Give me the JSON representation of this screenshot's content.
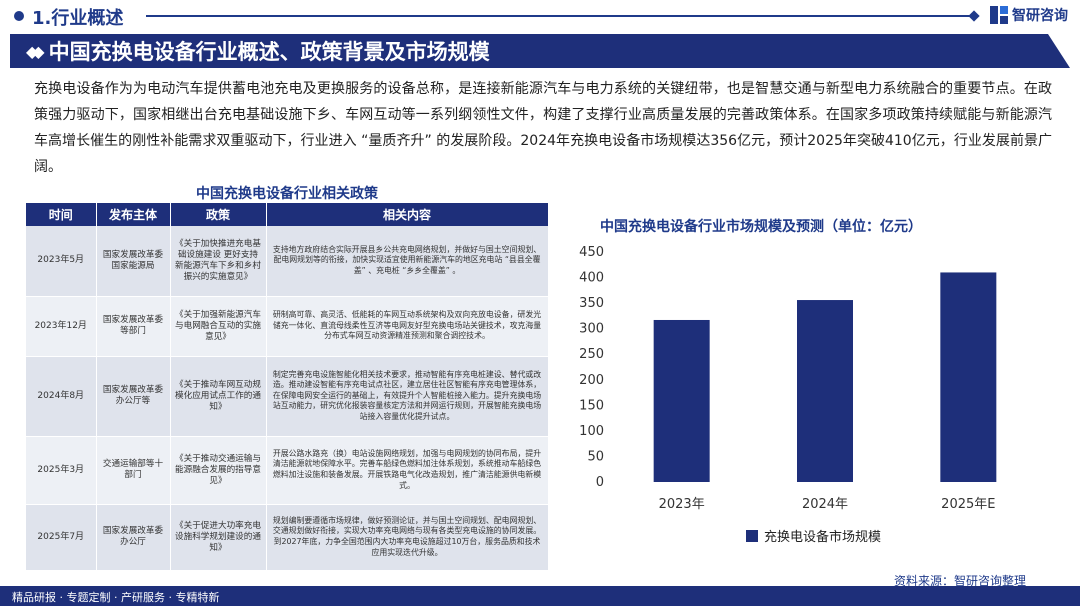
{
  "section": {
    "title": "1.行业概述",
    "logo_text": "智研咨询"
  },
  "banner": {
    "headline": "中国充换电设备行业概述、政策背景及市场规模"
  },
  "intro": "充换电设备作为为电动汽车提供蓄电池充电及更换服务的设备总称，是连接新能源汽车与电力系统的关键纽带，也是智慧交通与新型电力系统融合的重要节点。在政策强力驱动下，国家相继出台充电基础设施下乡、车网互动等一系列纲领性文件，构建了支撑行业高质量发展的完善政策体系。在国家多项政策持续赋能与新能源汽车高增长催生的刚性补能需求双重驱动下，行业进入 “量质齐升” 的发展阶段。2024年充换电设备市场规模达356亿元，预计2025年突破410亿元，行业发展前景广阔。",
  "policy_table": {
    "title": "中国充换电设备行业相关政策",
    "headers": [
      "时间",
      "发布主体",
      "政策",
      "相关内容"
    ],
    "rows": [
      {
        "time": "2023年5月",
        "issuer": "国家发展改革委 国家能源局",
        "policy": "《关于加快推进充电基础设施建设 更好支持新能源汽车下乡和乡村振兴的实施意见》",
        "content": "支持地方政府结合实际开展县乡公共充电网络规划，并做好与国土空间规划、配电网规划等的衔接，加快实现适宜使用新能源汽车的地区充电站 “县县全覆盖” 、充电桩 “乡乡全覆盖” 。"
      },
      {
        "time": "2023年12月",
        "issuer": "国家发展改革委等部门",
        "policy": "《关于加强新能源汽车与电网融合互动的实施意见》",
        "content": "研制高可靠、高灵活、低能耗的车网互动系统架构及双向充放电设备，研发光储充一体化、直流母线柔性互济等电网友好型充换电场站关键技术，攻克海量分布式车网互动资源精准预测和聚合调控技术。"
      },
      {
        "time": "2024年8月",
        "issuer": "国家发展改革委办公厅等",
        "policy": "《关于推动车网互动规模化应用试点工作的通知》",
        "content": "制定完善充电设施智能化相关技术要求，推动智能有序充电桩建设、替代或改造。推动建设智能有序充电试点社区，建立居住社区智能有序充电管理体系，在保障电网安全运行的基础上，有效提升个人智能桩接入能力。提升充换电场站互动能力，研究优化报装容量核定方法和并网运行规则，开展智能充换电场站接入容量优化提升试点。"
      },
      {
        "time": "2025年3月",
        "issuer": "交通运输部等十部门",
        "policy": "《关于推动交通运输与能源融合发展的指导意见》",
        "content": "开展公路水路充（换）电站设施网络规划，加强与电网规划的协同布局，提升清洁能源就地保障水平。完善车船绿色燃料加注体系规划，系统推动车船绿色燃料加注设施和装备发展。开展铁路电气化改造规划，推广清洁能源供电新模式。"
      },
      {
        "time": "2025年7月",
        "issuer": "国家发展改革委办公厅",
        "policy": "《关于促进大功率充电设施科学规划建设的通知》",
        "content": "规划编制要遵循市场规律，做好预测论证，并与国土空间规划、配电网规划、交通规划做好衔接，实现大功率充电网络与现有各类型充电设施的协同发展。到2027年底，力争全国范围内大功率充电设施超过10万台，服务品质和技术应用实现迭代升级。"
      }
    ]
  },
  "chart_data": {
    "type": "bar",
    "title": "中国充换电设备行业市场规模及预测（单位：亿元）",
    "categories": [
      "2023年",
      "2024年",
      "2025年E"
    ],
    "series": [
      {
        "name": "充换电设备市场规模",
        "values": [
          317,
          356,
          410
        ]
      }
    ],
    "ylim": [
      0,
      450
    ],
    "yticks": [
      0,
      50,
      100,
      150,
      200,
      250,
      300,
      350,
      400,
      450
    ],
    "legend": "bottom",
    "grid": false,
    "bar_color": "#1e2f7a"
  },
  "source": "资料来源：智研咨询整理",
  "footer": "精品研报 · 专题定制 · 产研服务 · 专精特新"
}
